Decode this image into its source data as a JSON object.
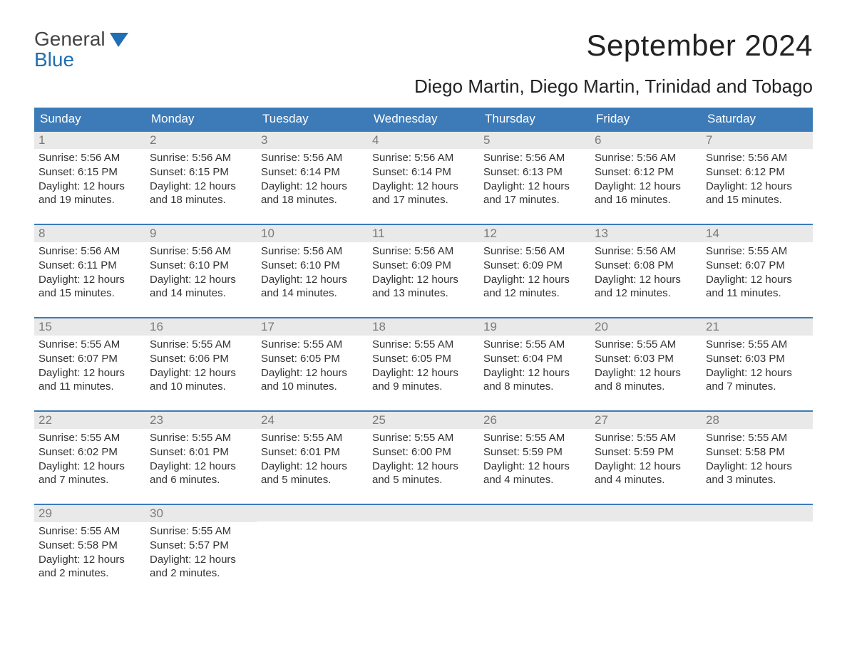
{
  "logo": {
    "primary": "General",
    "secondary": "Blue"
  },
  "title": "September 2024",
  "location": "Diego Martin, Diego Martin, Trinidad and Tobago",
  "colors": {
    "header_bg": "#3d7bb8",
    "header_text": "#ffffff",
    "daynum_bg": "#e9e9e9",
    "daynum_text": "#7a7a7a",
    "body_text": "#333333",
    "logo_blue": "#1f6fb2",
    "week_border": "#3d7bb8",
    "background": "#ffffff"
  },
  "typography": {
    "title_fontsize": 42,
    "location_fontsize": 26,
    "weekday_fontsize": 17,
    "daynum_fontsize": 17,
    "body_fontsize": 15,
    "font_family": "Arial"
  },
  "layout": {
    "columns": 7,
    "cell_min_height": 112
  },
  "weekdays": [
    "Sunday",
    "Monday",
    "Tuesday",
    "Wednesday",
    "Thursday",
    "Friday",
    "Saturday"
  ],
  "weeks": [
    [
      {
        "n": "1",
        "l1": "Sunrise: 5:56 AM",
        "l2": "Sunset: 6:15 PM",
        "l3": "Daylight: 12 hours",
        "l4": "and 19 minutes."
      },
      {
        "n": "2",
        "l1": "Sunrise: 5:56 AM",
        "l2": "Sunset: 6:15 PM",
        "l3": "Daylight: 12 hours",
        "l4": "and 18 minutes."
      },
      {
        "n": "3",
        "l1": "Sunrise: 5:56 AM",
        "l2": "Sunset: 6:14 PM",
        "l3": "Daylight: 12 hours",
        "l4": "and 18 minutes."
      },
      {
        "n": "4",
        "l1": "Sunrise: 5:56 AM",
        "l2": "Sunset: 6:14 PM",
        "l3": "Daylight: 12 hours",
        "l4": "and 17 minutes."
      },
      {
        "n": "5",
        "l1": "Sunrise: 5:56 AM",
        "l2": "Sunset: 6:13 PM",
        "l3": "Daylight: 12 hours",
        "l4": "and 17 minutes."
      },
      {
        "n": "6",
        "l1": "Sunrise: 5:56 AM",
        "l2": "Sunset: 6:12 PM",
        "l3": "Daylight: 12 hours",
        "l4": "and 16 minutes."
      },
      {
        "n": "7",
        "l1": "Sunrise: 5:56 AM",
        "l2": "Sunset: 6:12 PM",
        "l3": "Daylight: 12 hours",
        "l4": "and 15 minutes."
      }
    ],
    [
      {
        "n": "8",
        "l1": "Sunrise: 5:56 AM",
        "l2": "Sunset: 6:11 PM",
        "l3": "Daylight: 12 hours",
        "l4": "and 15 minutes."
      },
      {
        "n": "9",
        "l1": "Sunrise: 5:56 AM",
        "l2": "Sunset: 6:10 PM",
        "l3": "Daylight: 12 hours",
        "l4": "and 14 minutes."
      },
      {
        "n": "10",
        "l1": "Sunrise: 5:56 AM",
        "l2": "Sunset: 6:10 PM",
        "l3": "Daylight: 12 hours",
        "l4": "and 14 minutes."
      },
      {
        "n": "11",
        "l1": "Sunrise: 5:56 AM",
        "l2": "Sunset: 6:09 PM",
        "l3": "Daylight: 12 hours",
        "l4": "and 13 minutes."
      },
      {
        "n": "12",
        "l1": "Sunrise: 5:56 AM",
        "l2": "Sunset: 6:09 PM",
        "l3": "Daylight: 12 hours",
        "l4": "and 12 minutes."
      },
      {
        "n": "13",
        "l1": "Sunrise: 5:56 AM",
        "l2": "Sunset: 6:08 PM",
        "l3": "Daylight: 12 hours",
        "l4": "and 12 minutes."
      },
      {
        "n": "14",
        "l1": "Sunrise: 5:55 AM",
        "l2": "Sunset: 6:07 PM",
        "l3": "Daylight: 12 hours",
        "l4": "and 11 minutes."
      }
    ],
    [
      {
        "n": "15",
        "l1": "Sunrise: 5:55 AM",
        "l2": "Sunset: 6:07 PM",
        "l3": "Daylight: 12 hours",
        "l4": "and 11 minutes."
      },
      {
        "n": "16",
        "l1": "Sunrise: 5:55 AM",
        "l2": "Sunset: 6:06 PM",
        "l3": "Daylight: 12 hours",
        "l4": "and 10 minutes."
      },
      {
        "n": "17",
        "l1": "Sunrise: 5:55 AM",
        "l2": "Sunset: 6:05 PM",
        "l3": "Daylight: 12 hours",
        "l4": "and 10 minutes."
      },
      {
        "n": "18",
        "l1": "Sunrise: 5:55 AM",
        "l2": "Sunset: 6:05 PM",
        "l3": "Daylight: 12 hours",
        "l4": "and 9 minutes."
      },
      {
        "n": "19",
        "l1": "Sunrise: 5:55 AM",
        "l2": "Sunset: 6:04 PM",
        "l3": "Daylight: 12 hours",
        "l4": "and 8 minutes."
      },
      {
        "n": "20",
        "l1": "Sunrise: 5:55 AM",
        "l2": "Sunset: 6:03 PM",
        "l3": "Daylight: 12 hours",
        "l4": "and 8 minutes."
      },
      {
        "n": "21",
        "l1": "Sunrise: 5:55 AM",
        "l2": "Sunset: 6:03 PM",
        "l3": "Daylight: 12 hours",
        "l4": "and 7 minutes."
      }
    ],
    [
      {
        "n": "22",
        "l1": "Sunrise: 5:55 AM",
        "l2": "Sunset: 6:02 PM",
        "l3": "Daylight: 12 hours",
        "l4": "and 7 minutes."
      },
      {
        "n": "23",
        "l1": "Sunrise: 5:55 AM",
        "l2": "Sunset: 6:01 PM",
        "l3": "Daylight: 12 hours",
        "l4": "and 6 minutes."
      },
      {
        "n": "24",
        "l1": "Sunrise: 5:55 AM",
        "l2": "Sunset: 6:01 PM",
        "l3": "Daylight: 12 hours",
        "l4": "and 5 minutes."
      },
      {
        "n": "25",
        "l1": "Sunrise: 5:55 AM",
        "l2": "Sunset: 6:00 PM",
        "l3": "Daylight: 12 hours",
        "l4": "and 5 minutes."
      },
      {
        "n": "26",
        "l1": "Sunrise: 5:55 AM",
        "l2": "Sunset: 5:59 PM",
        "l3": "Daylight: 12 hours",
        "l4": "and 4 minutes."
      },
      {
        "n": "27",
        "l1": "Sunrise: 5:55 AM",
        "l2": "Sunset: 5:59 PM",
        "l3": "Daylight: 12 hours",
        "l4": "and 4 minutes."
      },
      {
        "n": "28",
        "l1": "Sunrise: 5:55 AM",
        "l2": "Sunset: 5:58 PM",
        "l3": "Daylight: 12 hours",
        "l4": "and 3 minutes."
      }
    ],
    [
      {
        "n": "29",
        "l1": "Sunrise: 5:55 AM",
        "l2": "Sunset: 5:58 PM",
        "l3": "Daylight: 12 hours",
        "l4": "and 2 minutes."
      },
      {
        "n": "30",
        "l1": "Sunrise: 5:55 AM",
        "l2": "Sunset: 5:57 PM",
        "l3": "Daylight: 12 hours",
        "l4": "and 2 minutes."
      },
      {
        "empty": true
      },
      {
        "empty": true
      },
      {
        "empty": true
      },
      {
        "empty": true
      },
      {
        "empty": true
      }
    ]
  ]
}
